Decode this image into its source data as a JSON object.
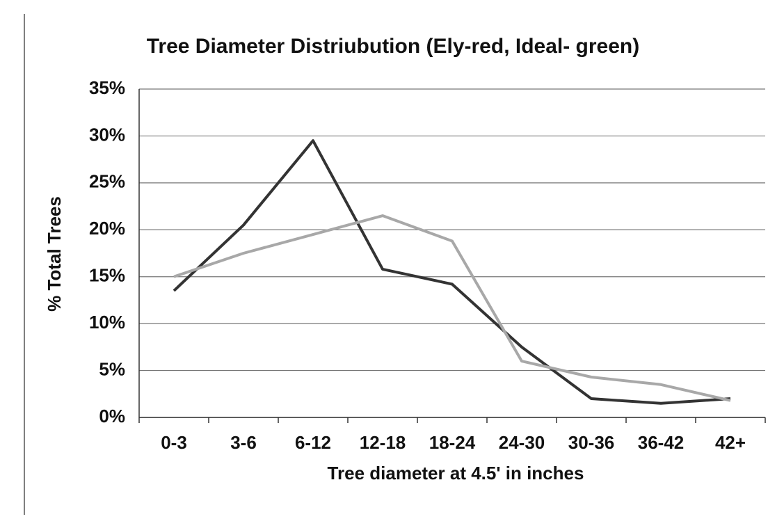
{
  "chart_data": {
    "type": "line",
    "title": "Tree Diameter Distriubution (Ely-red, Ideal- green)",
    "x_label": "Tree diameter at 4.5' in inches",
    "y_label": "% Total Trees",
    "categories": [
      "0-3",
      "3-6",
      "6-12",
      "12-18",
      "18-24",
      "24-30",
      "30-36",
      "36-42",
      "42+"
    ],
    "series": [
      {
        "color": "#333333",
        "values": [
          13.5,
          20.5,
          29.5,
          15.8,
          14.2,
          7.5,
          2,
          1.5,
          2
        ]
      },
      {
        "color": "#a8a8a8",
        "values": [
          15,
          17.5,
          19.5,
          21.5,
          18.8,
          6,
          4.3,
          3.5,
          1.8
        ]
      }
    ],
    "ylim": [
      0,
      35
    ],
    "yticks": [
      {
        "value": 0,
        "label": "0%"
      },
      {
        "value": 5,
        "label": "5%"
      },
      {
        "value": 10,
        "label": "10%"
      },
      {
        "value": 15,
        "label": "15%"
      },
      {
        "value": 20,
        "label": "20%"
      },
      {
        "value": 25,
        "label": "25%"
      },
      {
        "value": 30,
        "label": "30%"
      },
      {
        "value": 35,
        "label": "35%"
      }
    ],
    "grid": true
  }
}
